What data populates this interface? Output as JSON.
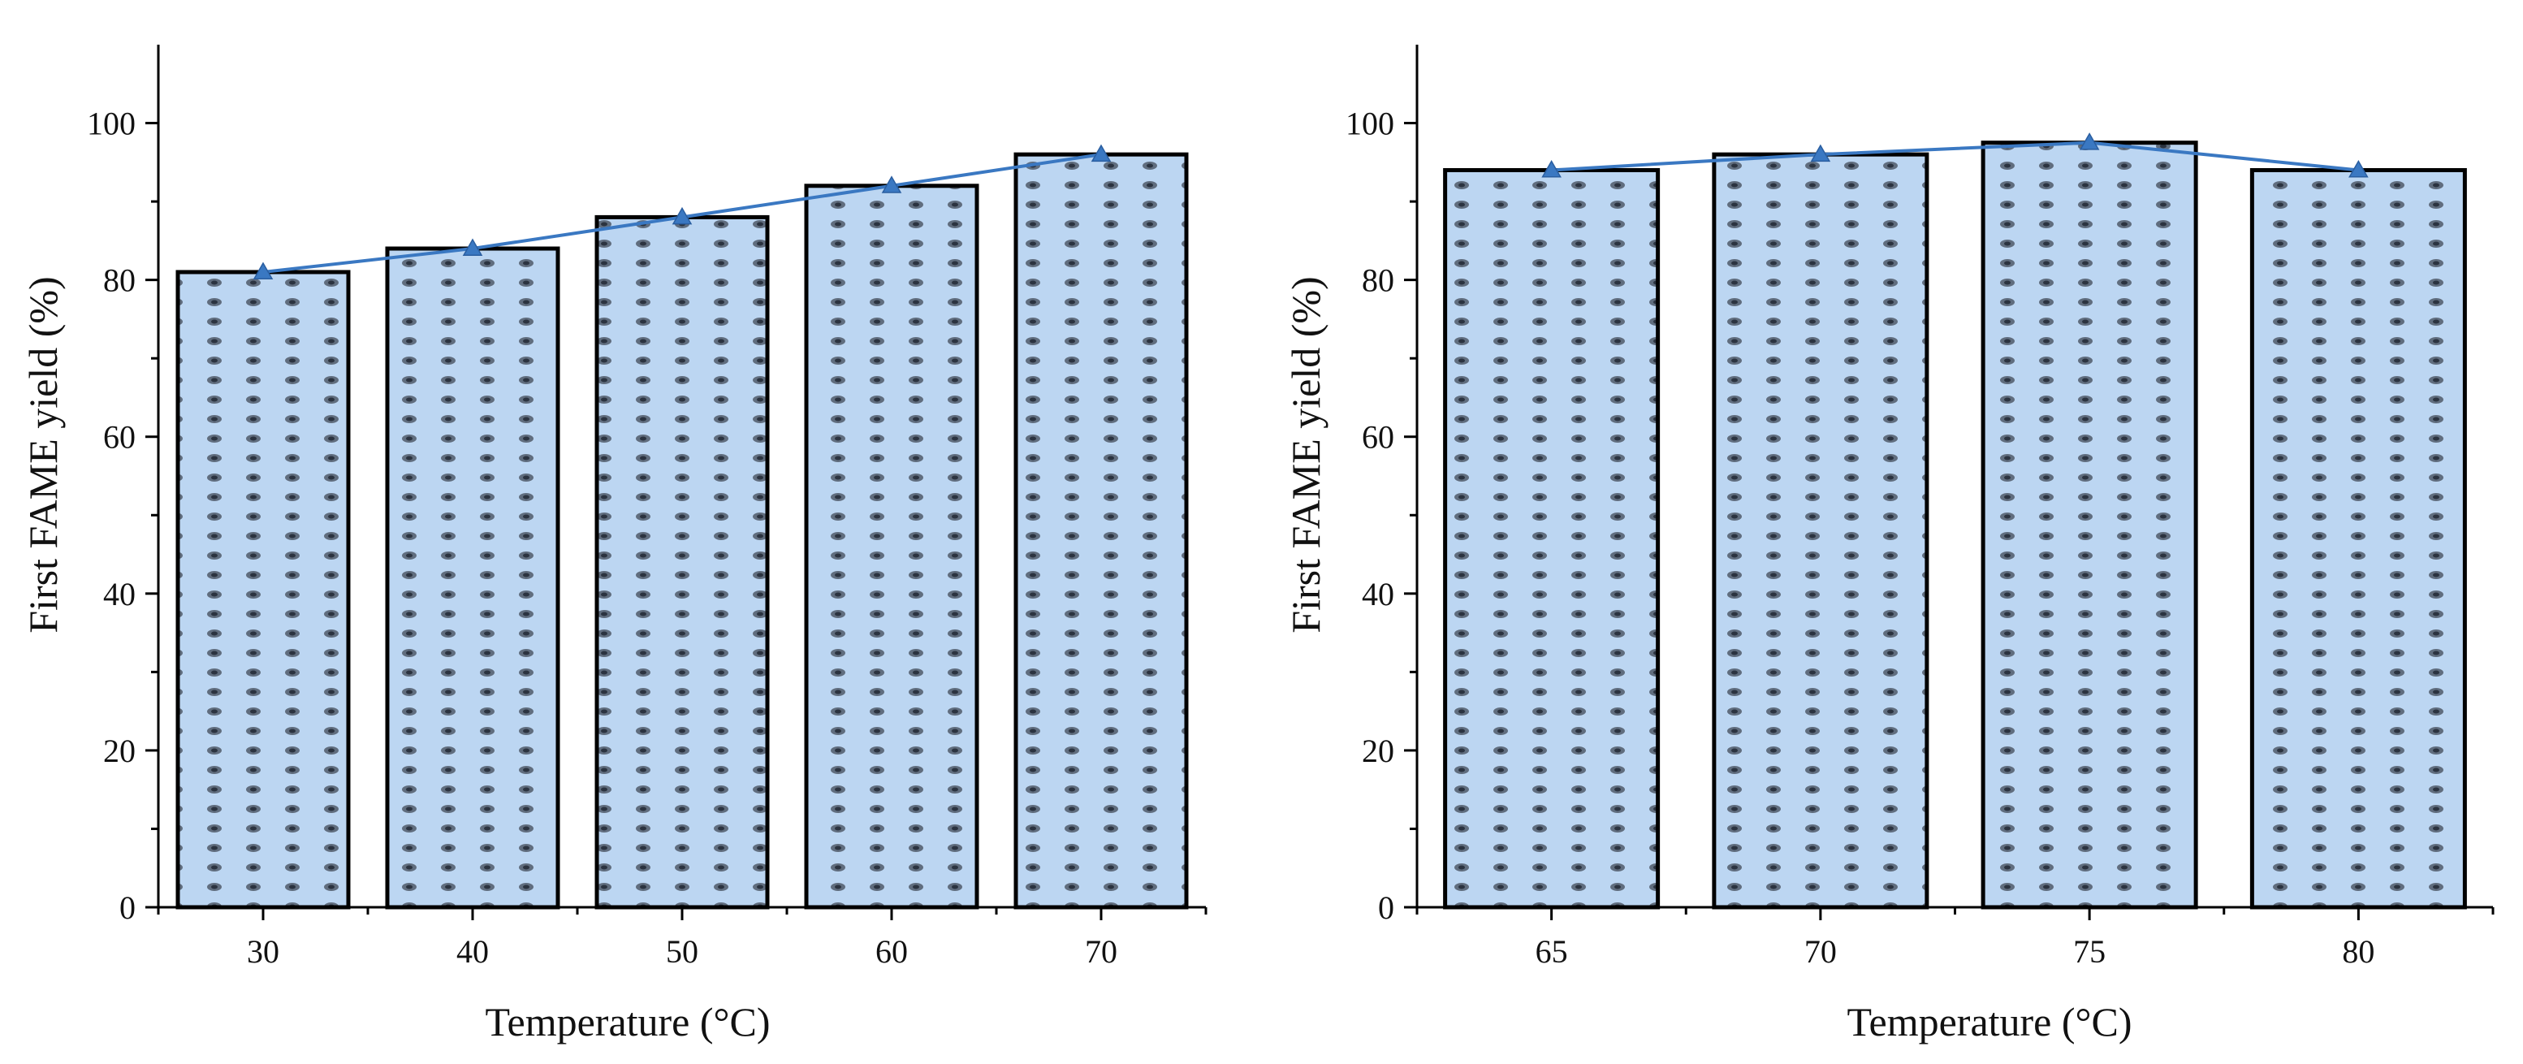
{
  "colors": {
    "bar_fill": "#bcd6f2",
    "bar_dots": "#505a6a",
    "line": "#3a78c2"
  },
  "chart_data": [
    {
      "type": "bar",
      "overlay": "line with triangle markers",
      "categories": [
        "30",
        "40",
        "50",
        "60",
        "70"
      ],
      "values": [
        81,
        84,
        88,
        92,
        96
      ],
      "ylabel": "First FAME yield (%)",
      "xlabel": "Temperature (°C)",
      "ylim": [
        0,
        110
      ],
      "yticks": [
        "0",
        "20",
        "40",
        "60",
        "80",
        "100"
      ],
      "grid": false
    },
    {
      "type": "bar",
      "overlay": "line with triangle markers",
      "categories": [
        "65",
        "70",
        "75",
        "80"
      ],
      "values": [
        94,
        96,
        97.5,
        94
      ],
      "ylabel": "First FAME yield (%)",
      "xlabel": "Temperature (°C)",
      "ylim": [
        0,
        110
      ],
      "yticks": [
        "0",
        "20",
        "40",
        "60",
        "80",
        "100"
      ],
      "grid": false
    }
  ]
}
